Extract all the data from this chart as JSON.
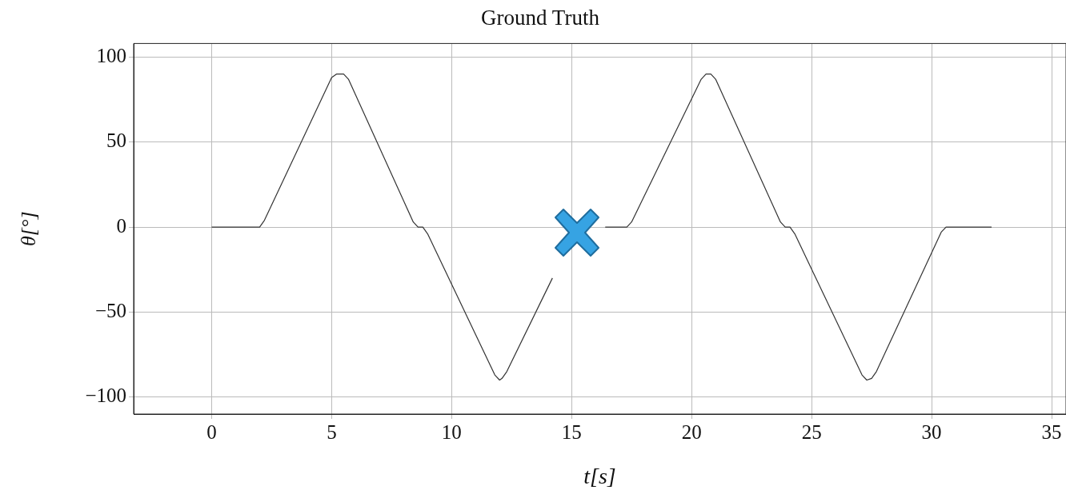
{
  "chart_data": {
    "type": "line",
    "title": "Ground Truth",
    "xlabel": "t[s]",
    "ylabel": "θ[°]",
    "x": [
      0,
      2.0,
      2.2,
      5.0,
      5.2,
      5.5,
      5.7,
      8.4,
      8.6,
      8.8,
      9.0,
      11.8,
      12.0,
      12.1,
      12.3,
      14.2,
      15.2,
      16.4,
      17.3,
      17.5,
      20.4,
      20.6,
      20.8,
      21.0,
      23.7,
      23.9,
      24.1,
      24.3,
      27.1,
      27.3,
      27.5,
      27.7,
      30.4,
      30.6,
      32.5
    ],
    "series": [
      {
        "color": "#333333",
        "values": [
          0,
          0,
          4,
          88,
          90,
          90,
          87,
          3,
          0,
          0,
          -4,
          -87,
          -90,
          -89,
          -85,
          -30,
          null,
          0,
          0,
          3,
          87,
          90,
          90,
          87,
          3,
          0,
          0,
          -4,
          -87,
          -90,
          -89,
          -85,
          -3,
          0,
          0
        ]
      }
    ],
    "xlim": [
      -3.25,
      35.6
    ],
    "ylim": [
      -110,
      108
    ],
    "xticks": [
      0,
      5,
      10,
      15,
      20,
      25,
      30,
      35
    ],
    "yticks": [
      -100,
      -50,
      0,
      50,
      100
    ],
    "grid": true,
    "legend": false,
    "marker": "none",
    "line_style": "solid"
  }
}
